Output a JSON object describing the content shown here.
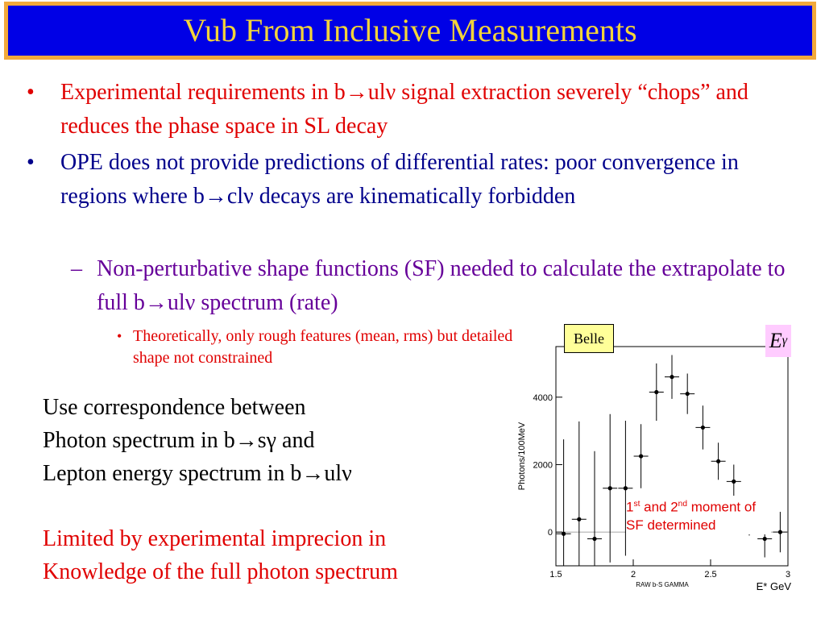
{
  "title": "Vub From Inclusive Measurements",
  "bullets": [
    {
      "marker": "•",
      "text": "Experimental requirements in b→ulν signal extraction severely “chops” and reduces the phase space in SL decay"
    },
    {
      "marker": "•",
      "text": "OPE does not provide predictions of differential rates: poor convergence in regions where b→clν decays are kinematically forbidden"
    },
    {
      "marker": "–",
      "text": "Non-perturbative shape functions (SF) needed to calculate the extrapolate to full b→ulν spectrum (rate)"
    },
    {
      "marker": "•",
      "text": "Theoretically, only rough features (mean, rms) but detailed shape not constrained"
    }
  ],
  "paragraph1": [
    "Use correspondence between",
    "Photon spectrum in b→sγ and",
    "Lepton energy spectrum in b→ulν"
  ],
  "paragraph2": [
    "Limited by experimental imprecion in",
    "Knowledge of the full photon spectrum"
  ],
  "plot": {
    "legend_label": "Belle",
    "egamma_main": "E",
    "egamma_sub": "γ",
    "annotation": {
      "n1": "1",
      "sup1": "st",
      "mid": " and 2",
      "sup2": "nd",
      "rest": " moment of SF determined"
    },
    "inner_label": "RAW b-S GAMMA",
    "xlabel": "E* GeV"
  },
  "chart_data": {
    "type": "scatter",
    "xlabel": "E* GeV",
    "ylabel": "Photons/100MeV",
    "xlim": [
      1.5,
      3.0
    ],
    "ylim": [
      -1000,
      5500
    ],
    "xticks": [
      "1.5",
      "2",
      "2.5",
      "3"
    ],
    "yticks": [
      "0",
      "2000",
      "4000"
    ],
    "points": [
      {
        "x": 1.55,
        "y": -50,
        "err": 2800
      },
      {
        "x": 1.65,
        "y": 380,
        "err": 2900
      },
      {
        "x": 1.75,
        "y": -200,
        "err": 2600
      },
      {
        "x": 1.85,
        "y": 1300,
        "err": 2200
      },
      {
        "x": 1.95,
        "y": 1300,
        "err": 2000
      },
      {
        "x": 2.05,
        "y": 2250,
        "err": 950
      },
      {
        "x": 2.15,
        "y": 4150,
        "err": 850
      },
      {
        "x": 2.25,
        "y": 4600,
        "err": 650
      },
      {
        "x": 2.35,
        "y": 4100,
        "err": 600
      },
      {
        "x": 2.45,
        "y": 3100,
        "err": 650
      },
      {
        "x": 2.55,
        "y": 2100,
        "err": 550
      },
      {
        "x": 2.65,
        "y": 1500,
        "err": 500
      },
      {
        "x": 2.75,
        "y": 400,
        "err": 500
      },
      {
        "x": 2.85,
        "y": -200,
        "err": 550
      },
      {
        "x": 2.95,
        "y": 0,
        "err": 600
      }
    ]
  }
}
